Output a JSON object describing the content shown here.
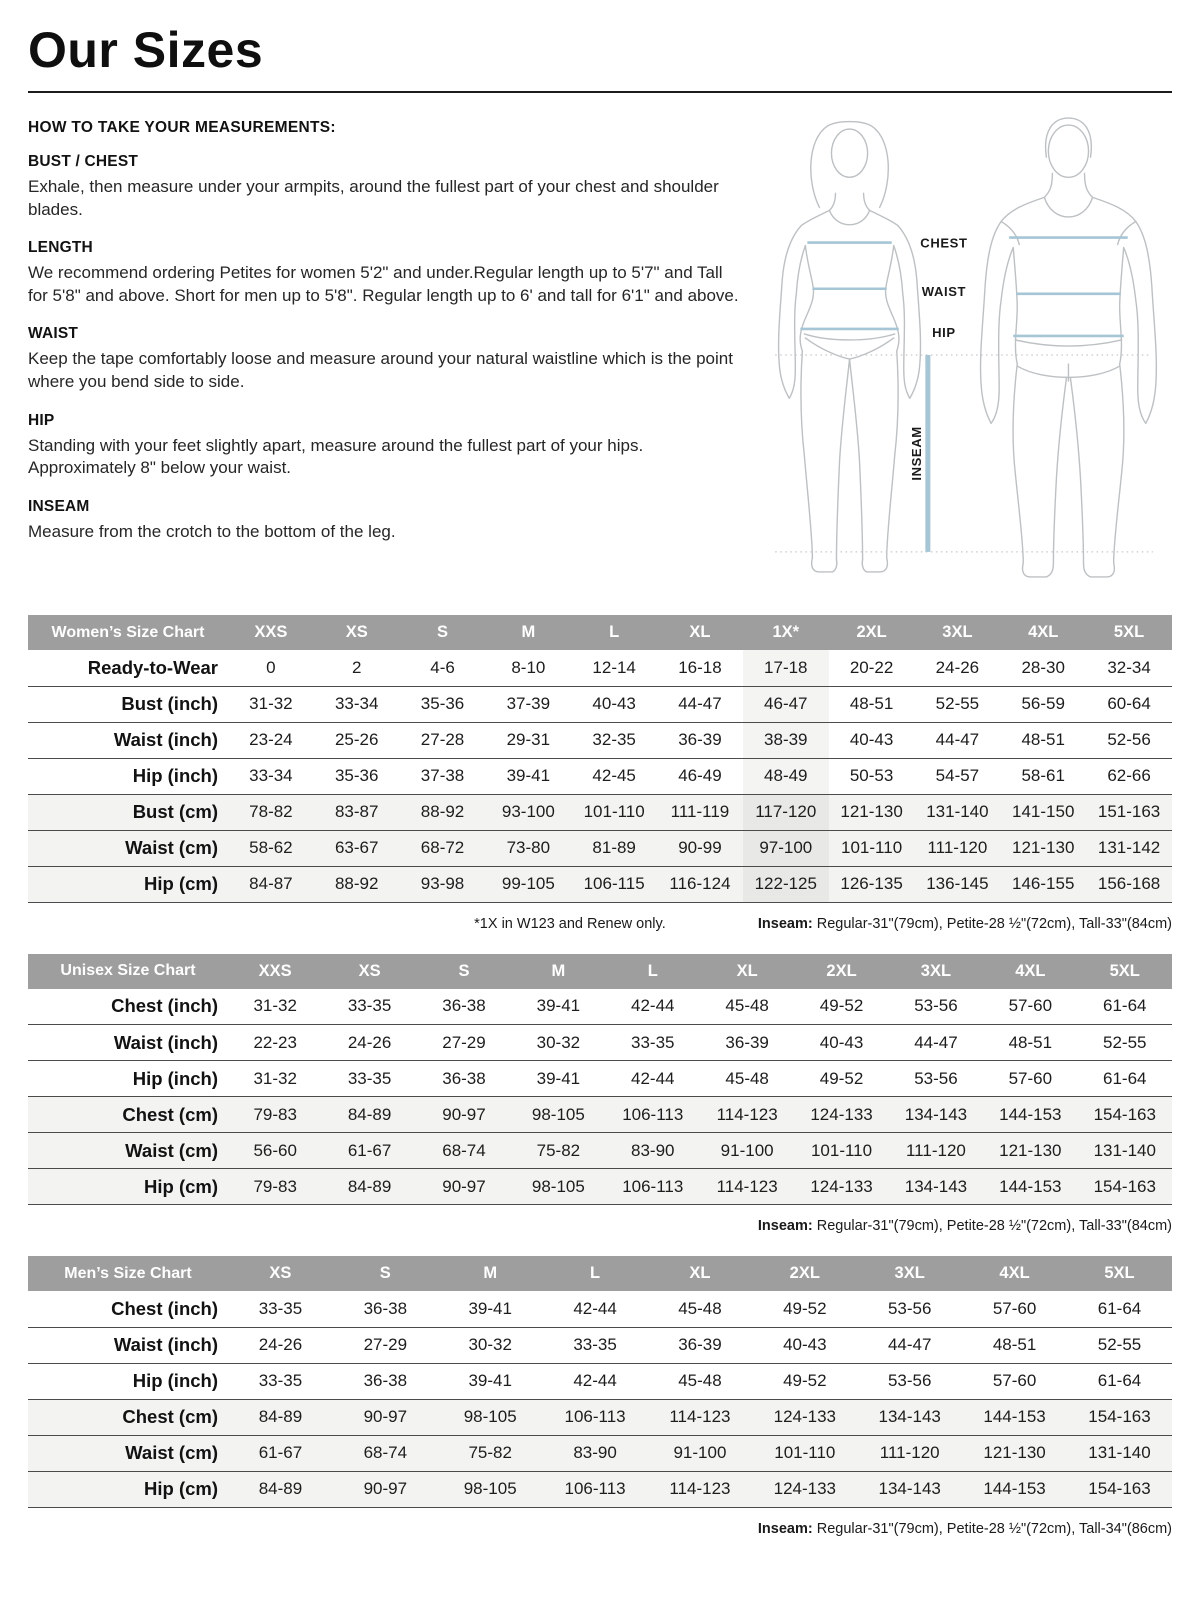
{
  "page": {
    "title": "Our Sizes"
  },
  "instructions": {
    "heading": "HOW TO TAKE YOUR MEASUREMENTS:",
    "sections": [
      {
        "title": "BUST / CHEST",
        "body": "Exhale, then measure under your armpits, around the fullest part of your chest and shoulder blades."
      },
      {
        "title": "LENGTH",
        "body": "We recommend ordering Petites for women 5'2\" and under.Regular length up to 5'7\" and Tall for 5'8\" and above. Short for men up to 5'8\". Regular length up to 6' and tall for 6'1\" and above."
      },
      {
        "title": "WAIST",
        "body": "Keep the tape comfortably loose and measure around your natural waistline which is the point where you bend side to side."
      },
      {
        "title": "HIP",
        "body": "Standing with your feet slightly apart, measure around the fullest part of your hips. Approximately 8\" below your waist."
      },
      {
        "title": "INSEAM",
        "body": "Measure from the crotch to the bottom of the leg."
      }
    ]
  },
  "figure": {
    "labels": {
      "chest": "CHEST",
      "waist": "WAIST",
      "hip": "HIP",
      "inseam": "INSEAM"
    },
    "outline_color": "#bdc1c3",
    "measure_line_color": "#a6c5d5",
    "dotted_guide_color": "#c8c8c8"
  },
  "tables": [
    {
      "title": "Women’s Size Chart",
      "columns": [
        "XXS",
        "XS",
        "S",
        "M",
        "L",
        "XL",
        "1X*",
        "2XL",
        "3XL",
        "4XL",
        "5XL"
      ],
      "highlight": "1X*",
      "rows": [
        {
          "label": "Ready-to-Wear",
          "shaded": false,
          "values": [
            "0",
            "2",
            "4-6",
            "8-10",
            "12-14",
            "16-18",
            "17-18",
            "20-22",
            "24-26",
            "28-30",
            "32-34"
          ]
        },
        {
          "label": "Bust (inch)",
          "shaded": false,
          "values": [
            "31-32",
            "33-34",
            "35-36",
            "37-39",
            "40-43",
            "44-47",
            "46-47",
            "48-51",
            "52-55",
            "56-59",
            "60-64"
          ]
        },
        {
          "label": "Waist (inch)",
          "shaded": false,
          "values": [
            "23-24",
            "25-26",
            "27-28",
            "29-31",
            "32-35",
            "36-39",
            "38-39",
            "40-43",
            "44-47",
            "48-51",
            "52-56"
          ]
        },
        {
          "label": "Hip (inch)",
          "shaded": false,
          "values": [
            "33-34",
            "35-36",
            "37-38",
            "39-41",
            "42-45",
            "46-49",
            "48-49",
            "50-53",
            "54-57",
            "58-61",
            "62-66"
          ]
        },
        {
          "label": "Bust (cm)",
          "shaded": true,
          "values": [
            "78-82",
            "83-87",
            "88-92",
            "93-100",
            "101-110",
            "111-119",
            "117-120",
            "121-130",
            "131-140",
            "141-150",
            "151-163"
          ]
        },
        {
          "label": "Waist (cm)",
          "shaded": true,
          "values": [
            "58-62",
            "63-67",
            "68-72",
            "73-80",
            "81-89",
            "90-99",
            "97-100",
            "101-110",
            "111-120",
            "121-130",
            "131-142"
          ]
        },
        {
          "label": "Hip (cm)",
          "shaded": true,
          "values": [
            "84-87",
            "88-92",
            "93-98",
            "99-105",
            "106-115",
            "116-124",
            "122-125",
            "126-135",
            "136-145",
            "146-155",
            "156-168"
          ]
        }
      ],
      "footnote_left": "*1X in W123 and Renew only.",
      "footnote_right_label": "Inseam:",
      "footnote_right_text": " Regular-31\"(79cm), Petite-28 ½\"(72cm), Tall-33\"(84cm)"
    },
    {
      "title": "Unisex Size Chart",
      "columns": [
        "XXS",
        "XS",
        "S",
        "M",
        "L",
        "XL",
        "2XL",
        "3XL",
        "4XL",
        "5XL"
      ],
      "highlight": "",
      "rows": [
        {
          "label": "Chest (inch)",
          "shaded": false,
          "values": [
            "31-32",
            "33-35",
            "36-38",
            "39-41",
            "42-44",
            "45-48",
            "49-52",
            "53-56",
            "57-60",
            "61-64"
          ]
        },
        {
          "label": "Waist (inch)",
          "shaded": false,
          "values": [
            "22-23",
            "24-26",
            "27-29",
            "30-32",
            "33-35",
            "36-39",
            "40-43",
            "44-47",
            "48-51",
            "52-55"
          ]
        },
        {
          "label": "Hip (inch)",
          "shaded": false,
          "values": [
            "31-32",
            "33-35",
            "36-38",
            "39-41",
            "42-44",
            "45-48",
            "49-52",
            "53-56",
            "57-60",
            "61-64"
          ]
        },
        {
          "label": "Chest (cm)",
          "shaded": true,
          "values": [
            "79-83",
            "84-89",
            "90-97",
            "98-105",
            "106-113",
            "114-123",
            "124-133",
            "134-143",
            "144-153",
            "154-163"
          ]
        },
        {
          "label": "Waist (cm)",
          "shaded": true,
          "values": [
            "56-60",
            "61-67",
            "68-74",
            "75-82",
            "83-90",
            "91-100",
            "101-110",
            "111-120",
            "121-130",
            "131-140"
          ]
        },
        {
          "label": "Hip (cm)",
          "shaded": true,
          "values": [
            "79-83",
            "84-89",
            "90-97",
            "98-105",
            "106-113",
            "114-123",
            "124-133",
            "134-143",
            "144-153",
            "154-163"
          ]
        }
      ],
      "footnote_left": "",
      "footnote_right_label": "Inseam:",
      "footnote_right_text": " Regular-31\"(79cm), Petite-28 ½\"(72cm), Tall-33\"(84cm)"
    },
    {
      "title": "Men’s Size Chart",
      "columns": [
        "XS",
        "S",
        "M",
        "L",
        "XL",
        "2XL",
        "3XL",
        "4XL",
        "5XL"
      ],
      "highlight": "",
      "rows": [
        {
          "label": "Chest (inch)",
          "shaded": false,
          "values": [
            "33-35",
            "36-38",
            "39-41",
            "42-44",
            "45-48",
            "49-52",
            "53-56",
            "57-60",
            "61-64"
          ]
        },
        {
          "label": "Waist (inch)",
          "shaded": false,
          "values": [
            "24-26",
            "27-29",
            "30-32",
            "33-35",
            "36-39",
            "40-43",
            "44-47",
            "48-51",
            "52-55"
          ]
        },
        {
          "label": "Hip (inch)",
          "shaded": false,
          "values": [
            "33-35",
            "36-38",
            "39-41",
            "42-44",
            "45-48",
            "49-52",
            "53-56",
            "57-60",
            "61-64"
          ]
        },
        {
          "label": "Chest (cm)",
          "shaded": true,
          "values": [
            "84-89",
            "90-97",
            "98-105",
            "106-113",
            "114-123",
            "124-133",
            "134-143",
            "144-153",
            "154-163"
          ]
        },
        {
          "label": "Waist (cm)",
          "shaded": true,
          "values": [
            "61-67",
            "68-74",
            "75-82",
            "83-90",
            "91-100",
            "101-110",
            "111-120",
            "121-130",
            "131-140"
          ]
        },
        {
          "label": "Hip (cm)",
          "shaded": true,
          "values": [
            "84-89",
            "90-97",
            "98-105",
            "106-113",
            "114-123",
            "124-133",
            "134-143",
            "144-153",
            "154-163"
          ]
        }
      ],
      "footnote_left": "",
      "footnote_right_label": "Inseam:",
      "footnote_right_text": " Regular-31\"(79cm), Petite-28 ½\"(72cm), Tall-34\"(86cm)"
    }
  ]
}
